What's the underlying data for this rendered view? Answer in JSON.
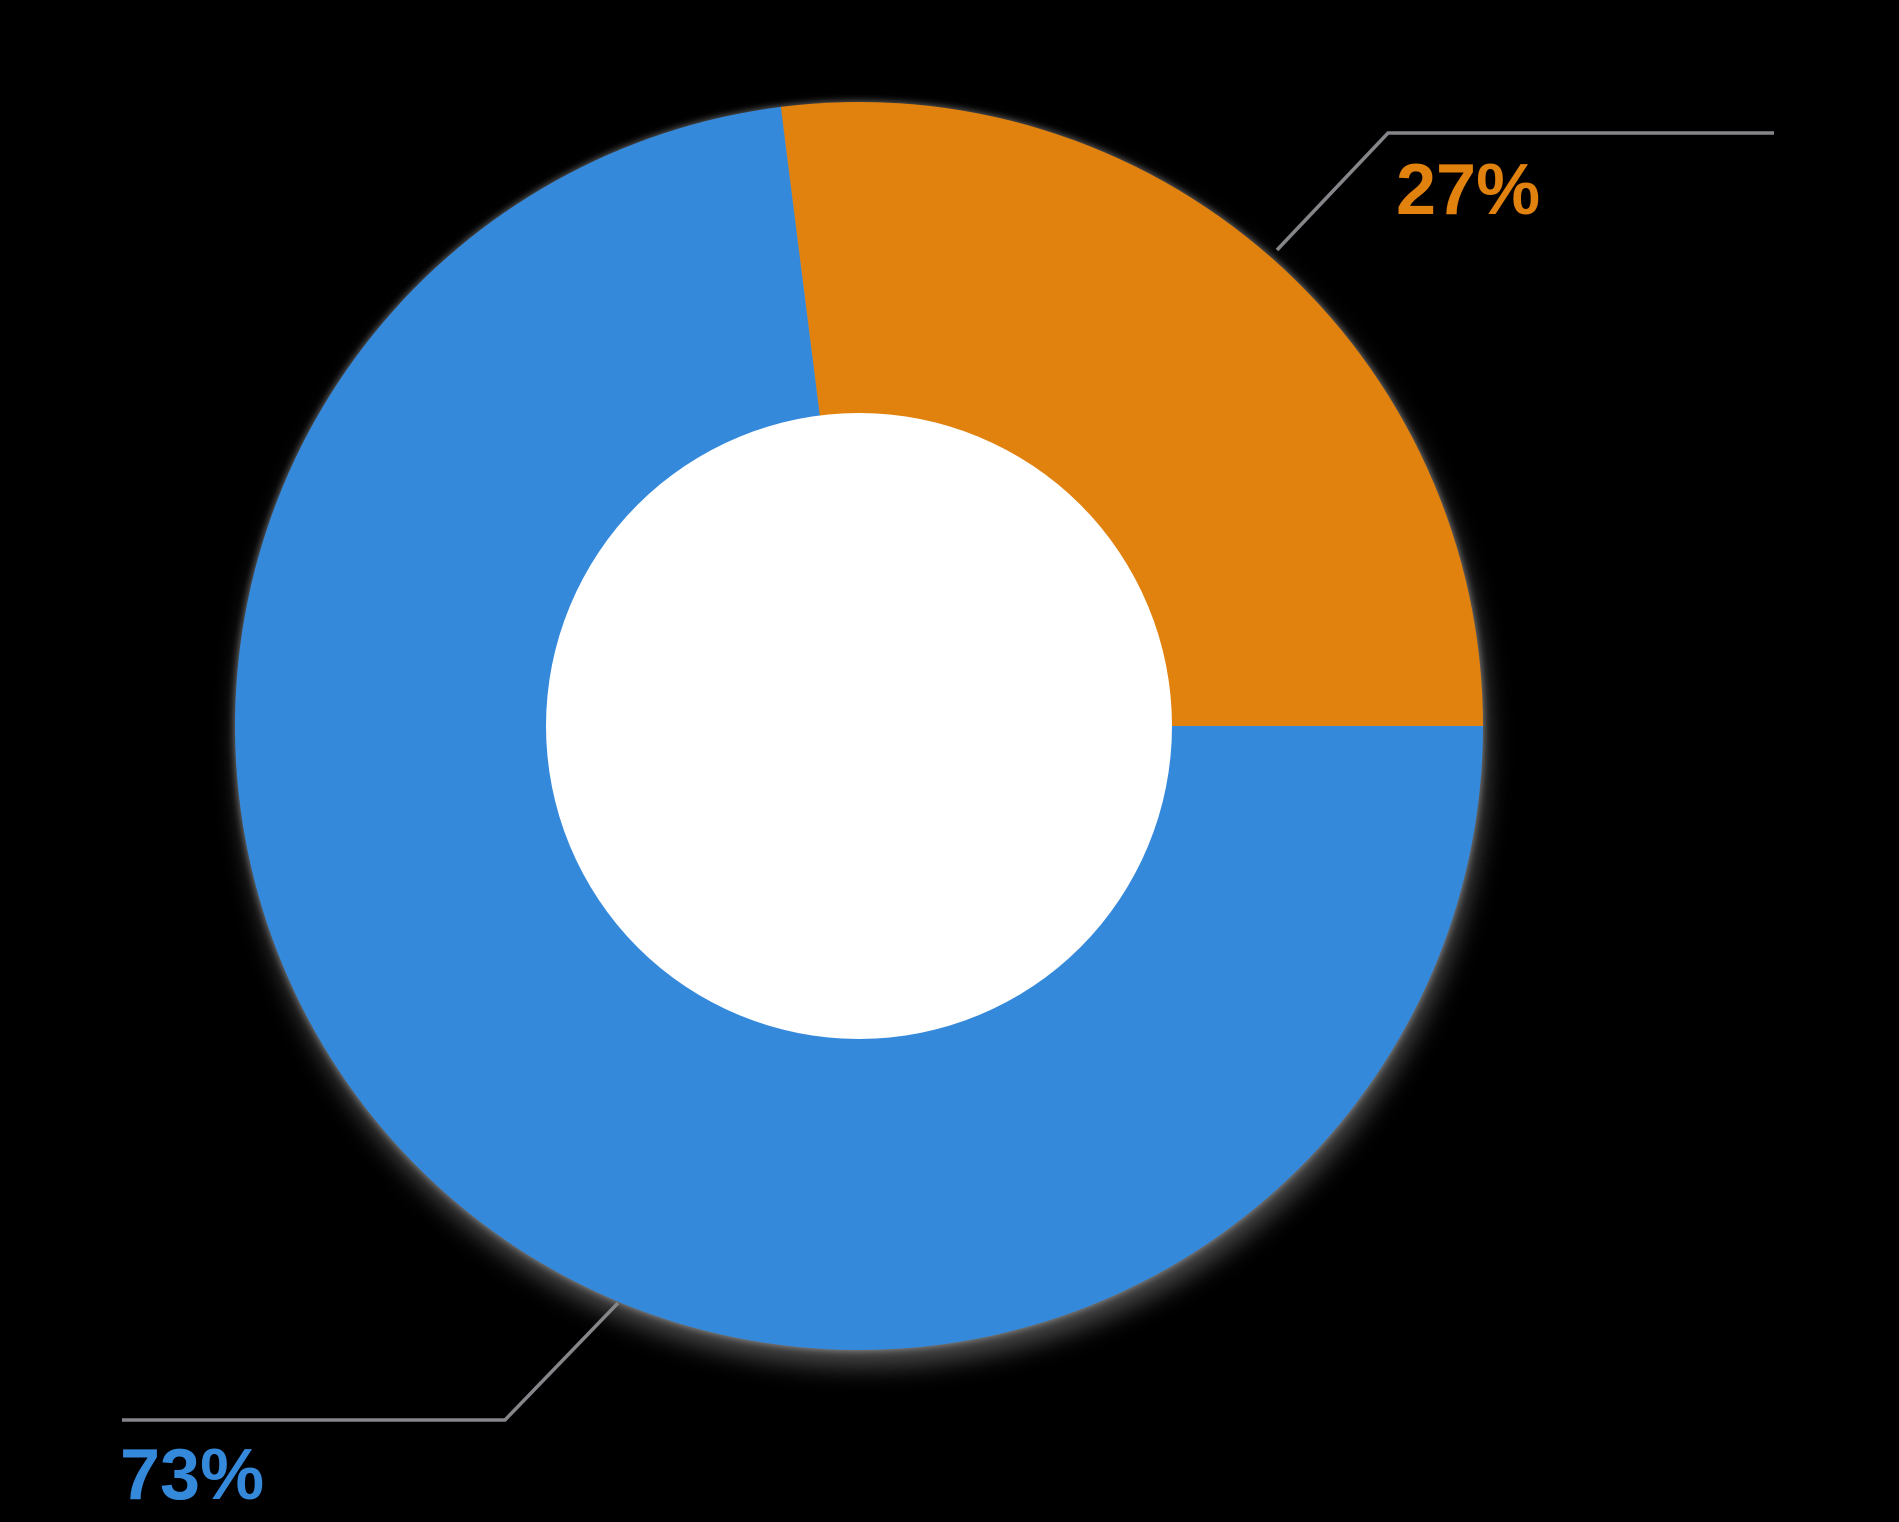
{
  "background_color": "#000000",
  "chart_data": {
    "type": "pie",
    "subtype": "donut",
    "direction": "clockwise",
    "start_angle_deg": -7.2,
    "hole_ratio": 0.5,
    "hole_color": "#FFFFFF",
    "leader_line_color": "#85868A",
    "legend": "none",
    "slices": [
      {
        "label": "27%",
        "value": 27,
        "color": "#E1810E"
      },
      {
        "label": "73%",
        "value": 73,
        "color": "#3589DB"
      }
    ]
  }
}
